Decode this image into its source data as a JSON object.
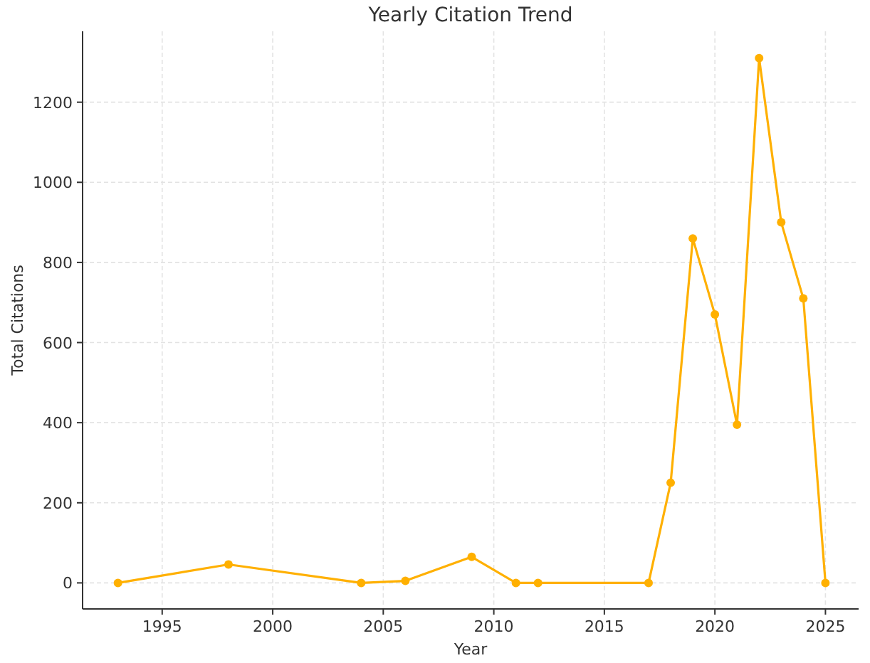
{
  "chart_data": {
    "type": "line",
    "title": "Yearly Citation Trend",
    "xlabel": "Year",
    "ylabel": "Total Citations",
    "x": [
      1993,
      1998,
      2004,
      2006,
      2009,
      2011,
      2012,
      2017,
      2018,
      2019,
      2020,
      2021,
      2022,
      2023,
      2024,
      2025
    ],
    "series": [
      {
        "color": "#ffb000",
        "values": [
          0,
          46,
          0,
          5,
          65,
          0,
          0,
          0,
          250,
          860,
          670,
          395,
          1310,
          900,
          710,
          0
        ]
      }
    ],
    "xlim": [
      1991.4,
      2026.5
    ],
    "xticks": [
      1995,
      2000,
      2005,
      2010,
      2015,
      2020,
      2025
    ],
    "ylim": [
      -65,
      1377
    ],
    "yticks": [
      0,
      200,
      400,
      600,
      800,
      1000,
      1200
    ],
    "grid": true,
    "marker": "circle",
    "line_style": "solid"
  }
}
